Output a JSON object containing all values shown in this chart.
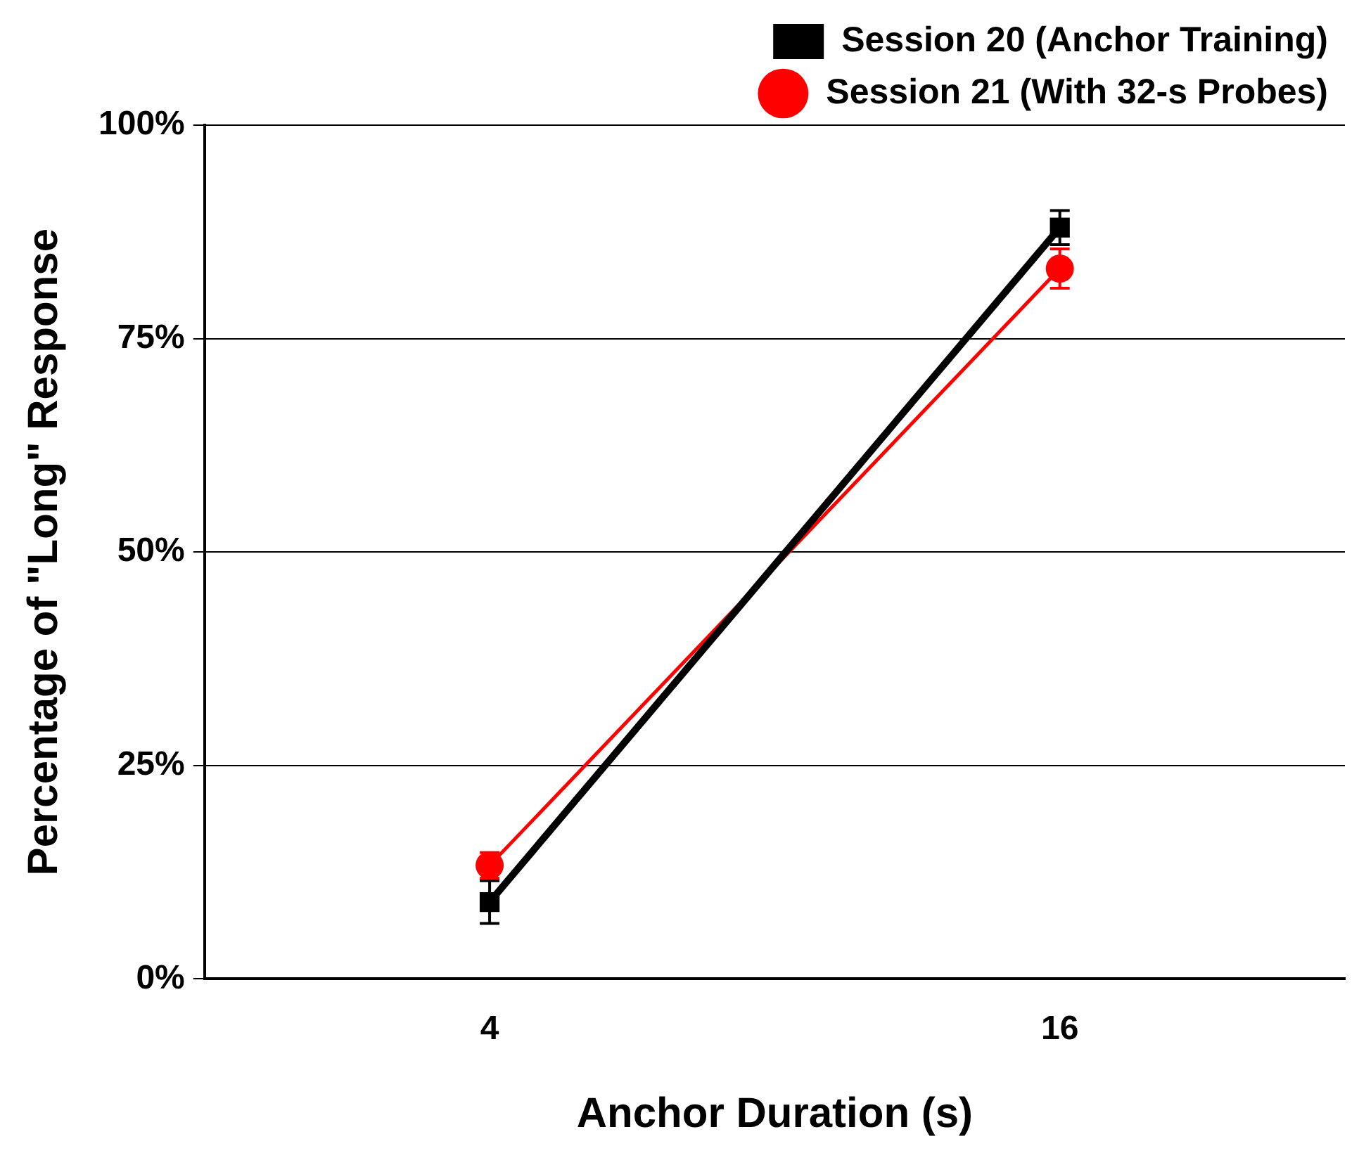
{
  "chart_data": {
    "type": "line",
    "xlabel": "Anchor Duration (s)",
    "ylabel": "Percentage of \"Long\" Response",
    "categories": [
      "4",
      "16"
    ],
    "series": [
      {
        "name": "Session 20 (Anchor Training)",
        "color": "#000000",
        "values": [
          9,
          88
        ],
        "errors": [
          2.5,
          2
        ],
        "marker": "square"
      },
      {
        "name": "Session 21 (With 32-s Probes)",
        "color": "#ff0000",
        "values": [
          13.3,
          83.2
        ],
        "errors": [
          1.5,
          2.3
        ],
        "marker": "circle"
      }
    ],
    "ylim": [
      0,
      100
    ],
    "yticks": [
      {
        "value": 0,
        "label": "0%"
      },
      {
        "value": 25,
        "label": "25%"
      },
      {
        "value": 50,
        "label": "50%"
      },
      {
        "value": 75,
        "label": "75%"
      },
      {
        "value": 100,
        "label": "100%"
      }
    ],
    "grid": "y",
    "legend": "top right",
    "line_style": "solid"
  }
}
